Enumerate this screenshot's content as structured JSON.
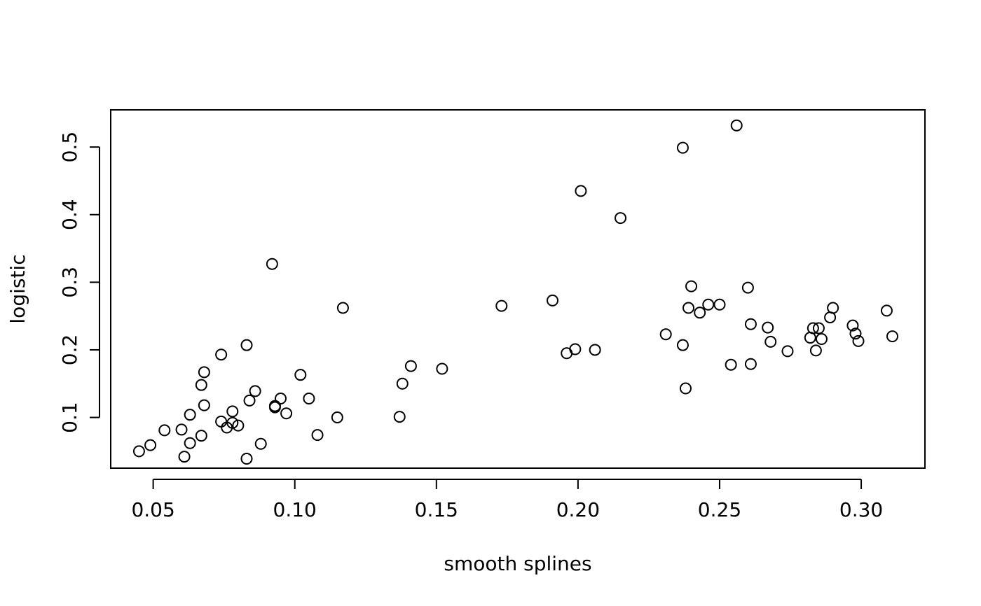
{
  "chart_data": {
    "type": "scatter",
    "title": "",
    "xlabel": "smooth splines",
    "ylabel": "logistic",
    "xlim": [
      0.035,
      0.3225
    ],
    "ylim": [
      0.025,
      0.555
    ],
    "xticks": [
      {
        "value": 0.05,
        "label": "0.05"
      },
      {
        "value": 0.1,
        "label": "0.10"
      },
      {
        "value": 0.15,
        "label": "0.15"
      },
      {
        "value": 0.2,
        "label": "0.20"
      },
      {
        "value": 0.25,
        "label": "0.25"
      },
      {
        "value": 0.3,
        "label": "0.30"
      }
    ],
    "yticks": [
      {
        "value": 0.1,
        "label": "0.1"
      },
      {
        "value": 0.2,
        "label": "0.2"
      },
      {
        "value": 0.3,
        "label": "0.3"
      },
      {
        "value": 0.4,
        "label": "0.4"
      },
      {
        "value": 0.5,
        "label": "0.5"
      }
    ],
    "grid": false,
    "marker": "open-circle",
    "points": [
      [
        0.045,
        0.05
      ],
      [
        0.049,
        0.059
      ],
      [
        0.054,
        0.081
      ],
      [
        0.06,
        0.082
      ],
      [
        0.061,
        0.042
      ],
      [
        0.063,
        0.062
      ],
      [
        0.063,
        0.104
      ],
      [
        0.067,
        0.073
      ],
      [
        0.067,
        0.148
      ],
      [
        0.068,
        0.167
      ],
      [
        0.068,
        0.118
      ],
      [
        0.074,
        0.193
      ],
      [
        0.074,
        0.094
      ],
      [
        0.076,
        0.085
      ],
      [
        0.078,
        0.109
      ],
      [
        0.078,
        0.092
      ],
      [
        0.08,
        0.088
      ],
      [
        0.083,
        0.207
      ],
      [
        0.084,
        0.125
      ],
      [
        0.086,
        0.139
      ],
      [
        0.088,
        0.061
      ],
      [
        0.083,
        0.039
      ],
      [
        0.092,
        0.327
      ],
      [
        0.093,
        0.115
      ],
      [
        0.093,
        0.117
      ],
      [
        0.095,
        0.128
      ],
      [
        0.097,
        0.106
      ],
      [
        0.102,
        0.163
      ],
      [
        0.105,
        0.128
      ],
      [
        0.108,
        0.074
      ],
      [
        0.115,
        0.1
      ],
      [
        0.117,
        0.262
      ],
      [
        0.137,
        0.101
      ],
      [
        0.138,
        0.15
      ],
      [
        0.141,
        0.176
      ],
      [
        0.152,
        0.172
      ],
      [
        0.173,
        0.265
      ],
      [
        0.191,
        0.273
      ],
      [
        0.196,
        0.195
      ],
      [
        0.199,
        0.201
      ],
      [
        0.201,
        0.435
      ],
      [
        0.206,
        0.2
      ],
      [
        0.215,
        0.395
      ],
      [
        0.231,
        0.223
      ],
      [
        0.237,
        0.499
      ],
      [
        0.237,
        0.207
      ],
      [
        0.238,
        0.143
      ],
      [
        0.239,
        0.262
      ],
      [
        0.24,
        0.294
      ],
      [
        0.243,
        0.255
      ],
      [
        0.246,
        0.267
      ],
      [
        0.25,
        0.267
      ],
      [
        0.254,
        0.178
      ],
      [
        0.256,
        0.532
      ],
      [
        0.26,
        0.292
      ],
      [
        0.261,
        0.238
      ],
      [
        0.261,
        0.179
      ],
      [
        0.267,
        0.233
      ],
      [
        0.268,
        0.212
      ],
      [
        0.274,
        0.198
      ],
      [
        0.282,
        0.218
      ],
      [
        0.283,
        0.232
      ],
      [
        0.285,
        0.232
      ],
      [
        0.284,
        0.199
      ],
      [
        0.286,
        0.216
      ],
      [
        0.289,
        0.248
      ],
      [
        0.29,
        0.262
      ],
      [
        0.297,
        0.236
      ],
      [
        0.298,
        0.224
      ],
      [
        0.299,
        0.213
      ],
      [
        0.309,
        0.258
      ],
      [
        0.311,
        0.22
      ]
    ]
  }
}
